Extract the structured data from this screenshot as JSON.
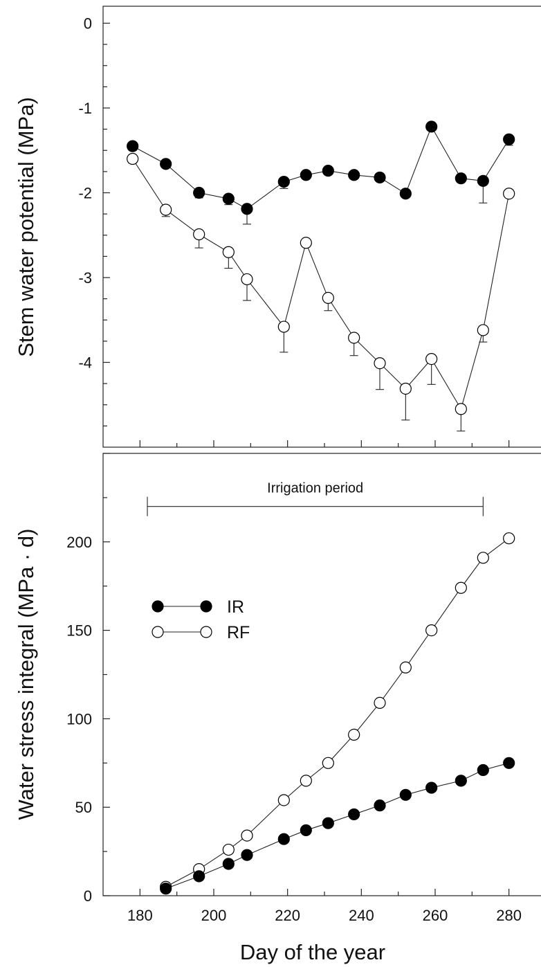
{
  "chart_data": [
    {
      "type": "line",
      "title": "",
      "xlabel": "",
      "ylabel": "Stem water potential (MPa)",
      "xlim": [
        170,
        290
      ],
      "ylim": [
        -5,
        0.2
      ],
      "y_ticks": [
        0,
        -1,
        -2,
        -3,
        -4
      ],
      "y_tick_labels": [
        "0",
        "-1",
        "-2",
        "-3",
        "-4"
      ],
      "grid": false,
      "x": [
        178,
        187,
        196,
        204,
        209,
        219,
        225,
        231,
        238,
        245,
        252,
        259,
        267,
        273,
        280
      ],
      "series": [
        {
          "name": "IR",
          "marker": "filled-circle",
          "values": [
            -1.45,
            -1.66,
            -2.0,
            -2.07,
            -2.19,
            -1.87,
            -1.79,
            -1.74,
            -1.79,
            -1.82,
            -2.01,
            -1.22,
            -1.83,
            -1.86,
            -1.37
          ],
          "error_down": [
            0.05,
            0,
            0.06,
            0.07,
            0.18,
            0.08,
            0,
            0,
            0,
            0,
            0,
            0,
            0,
            0.26,
            0.07
          ]
        },
        {
          "name": "RF",
          "marker": "open-circle",
          "values": [
            -1.6,
            -2.2,
            -2.49,
            -2.7,
            -3.02,
            -3.58,
            -2.59,
            -3.24,
            -3.71,
            -4.01,
            -4.31,
            -3.96,
            -4.55,
            -3.62,
            -2.01
          ],
          "error_down": [
            0.05,
            0.08,
            0.16,
            0.19,
            0.25,
            0.3,
            0,
            0.15,
            0.21,
            0.31,
            0.37,
            0.3,
            0.26,
            0.14,
            0
          ]
        }
      ]
    },
    {
      "type": "line",
      "title": "",
      "xlabel": "Day of the year",
      "ylabel": "Water stress integral (MPa · d)",
      "xlim": [
        170,
        290
      ],
      "ylim": [
        0,
        250
      ],
      "x_ticks": [
        180,
        200,
        220,
        240,
        260,
        280
      ],
      "x_tick_labels": [
        "180",
        "200",
        "220",
        "240",
        "260",
        "280"
      ],
      "y_ticks": [
        0,
        50,
        100,
        150,
        200
      ],
      "y_tick_labels": [
        "0",
        "50",
        "100",
        "150",
        "200"
      ],
      "grid": false,
      "legend_position": "middle-left",
      "legend": [
        "IR",
        "RF"
      ],
      "annotation": {
        "text": "Irrigation period",
        "x_start": 182,
        "x_end": 273,
        "y": 220
      },
      "x": [
        187,
        196,
        204,
        209,
        219,
        225,
        231,
        238,
        245,
        252,
        259,
        267,
        273,
        280
      ],
      "series": [
        {
          "name": "IR",
          "marker": "filled-circle",
          "values": [
            4,
            11,
            18,
            23,
            32,
            37,
            41,
            46,
            51,
            57,
            61,
            65,
            71,
            75
          ]
        },
        {
          "name": "RF",
          "marker": "open-circle",
          "values": [
            5,
            15,
            26,
            34,
            54,
            65,
            75,
            91,
            109,
            129,
            150,
            174,
            191,
            202
          ]
        }
      ]
    }
  ]
}
